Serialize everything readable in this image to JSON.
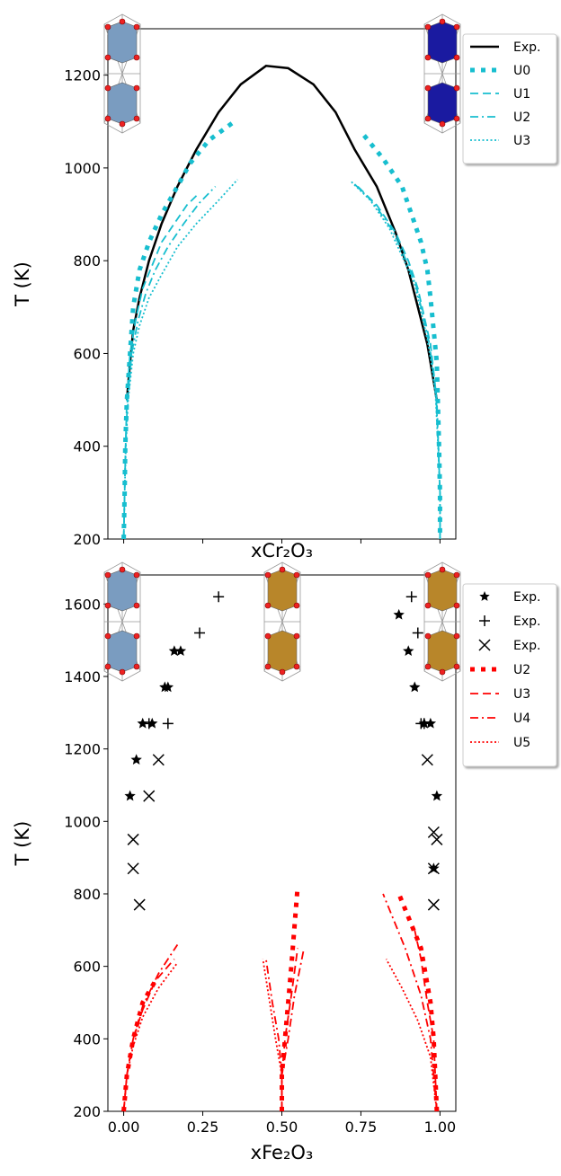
{
  "chart_data": [
    {
      "type": "line",
      "xlabel": "xCr₂O₃",
      "ylabel": "T (K)",
      "xlim": [
        -0.05,
        1.05
      ],
      "ylim": [
        200,
        1300
      ],
      "yticks": [
        200,
        400,
        600,
        800,
        1000,
        1200
      ],
      "series": [
        {
          "name": "Exp.",
          "type": "line",
          "style": "solid",
          "color": "#000000",
          "x": [
            0.01,
            0.02,
            0.03,
            0.05,
            0.08,
            0.12,
            0.17,
            0.23,
            0.3,
            0.37,
            0.45,
            0.52,
            0.6,
            0.67,
            0.73,
            0.8,
            0.86,
            0.9,
            0.93,
            0.96,
            0.98,
            0.99
          ],
          "values": [
            500,
            580,
            650,
            720,
            800,
            880,
            960,
            1040,
            1120,
            1180,
            1220,
            1215,
            1180,
            1120,
            1040,
            960,
            860,
            780,
            700,
            620,
            540,
            500
          ]
        },
        {
          "name": "U0",
          "type": "line",
          "style": "squares",
          "color": "#17becf",
          "x": [
            0,
            0.003,
            0.005,
            0.01,
            0.02,
            0.03,
            0.05,
            0.08,
            0.12,
            0.17,
            0.21,
            0.27,
            0.35,
            null,
            0.76,
            0.82,
            0.88,
            0.91,
            0.94,
            0.96,
            0.97,
            0.98,
            0.99,
            0.993,
            0.997,
            1,
            1
          ],
          "values": [
            200,
            300,
            400,
            500,
            600,
            700,
            780,
            840,
            900,
            960,
            1010,
            1060,
            1100,
            null,
            1070,
            1020,
            960,
            900,
            840,
            780,
            720,
            650,
            580,
            500,
            400,
            300,
            200
          ]
        },
        {
          "name": "U1",
          "type": "line",
          "style": "dashed",
          "color": "#17becf",
          "x": [
            0,
            0.003,
            0.006,
            0.01,
            0.02,
            0.04,
            0.06,
            0.09,
            0.12,
            0.16,
            0.2,
            0.23,
            null,
            0.74,
            0.8,
            0.86,
            0.9,
            0.93,
            0.95,
            0.97,
            0.98,
            0.99,
            0.995,
            1,
            1
          ],
          "values": [
            200,
            300,
            400,
            500,
            600,
            680,
            740,
            790,
            840,
            880,
            920,
            940,
            null,
            960,
            920,
            860,
            800,
            740,
            680,
            620,
            560,
            500,
            400,
            300,
            200
          ]
        },
        {
          "name": "U2",
          "type": "line",
          "style": "dashdot",
          "color": "#17becf",
          "x": [
            0,
            0.003,
            0.006,
            0.012,
            0.025,
            0.045,
            0.07,
            0.1,
            0.14,
            0.19,
            0.24,
            0.29,
            null,
            0.73,
            0.79,
            0.85,
            0.89,
            0.925,
            0.945,
            0.965,
            0.978,
            0.988,
            0.995,
            1,
            1
          ],
          "values": [
            200,
            300,
            400,
            500,
            600,
            670,
            730,
            780,
            830,
            880,
            925,
            960,
            null,
            965,
            925,
            865,
            805,
            745,
            685,
            625,
            565,
            505,
            400,
            300,
            200
          ]
        },
        {
          "name": "U3",
          "type": "line",
          "style": "dotted",
          "color": "#17becf",
          "x": [
            0,
            0.003,
            0.007,
            0.014,
            0.03,
            0.05,
            0.08,
            0.12,
            0.17,
            0.23,
            0.3,
            0.36,
            null,
            0.72,
            0.78,
            0.84,
            0.88,
            0.92,
            0.94,
            0.96,
            0.975,
            0.986,
            0.994,
            1,
            1
          ],
          "values": [
            200,
            300,
            400,
            500,
            600,
            660,
            720,
            770,
            830,
            880,
            930,
            975,
            null,
            970,
            930,
            870,
            810,
            750,
            690,
            630,
            570,
            510,
            400,
            300,
            200
          ]
        }
      ]
    },
    {
      "type": "line",
      "xlabel": "xFe₂O₃",
      "ylabel": "T (K)",
      "xlim": [
        -0.05,
        1.05
      ],
      "ylim": [
        200,
        1680
      ],
      "yticks": [
        200,
        400,
        600,
        800,
        1000,
        1200,
        1400,
        1600
      ],
      "xticks": [
        {
          "value": 0,
          "label": "0.00"
        },
        {
          "value": 0.25,
          "label": "0.25"
        },
        {
          "value": 0.5,
          "label": "0.50"
        },
        {
          "value": 0.75,
          "label": "0.75"
        },
        {
          "value": 1,
          "label": "1.00"
        }
      ],
      "series": [
        {
          "name": "Exp.",
          "type": "scatter",
          "marker": "star",
          "color": "#000000",
          "x": [
            0.02,
            0.04,
            0.06,
            0.09,
            0.13,
            0.14,
            0.16,
            0.18,
            0.87,
            0.9,
            0.92,
            0.95,
            0.97,
            0.99,
            0.98
          ],
          "values": [
            1070,
            1170,
            1270,
            1270,
            1370,
            1370,
            1470,
            1470,
            1570,
            1470,
            1370,
            1270,
            1270,
            1070,
            870
          ]
        },
        {
          "name": "Exp.",
          "type": "scatter",
          "marker": "plus",
          "color": "#000000",
          "x": [
            0.3,
            0.24,
            0.14,
            0.08,
            0.91,
            0.93,
            0.94,
            0.95
          ],
          "values": [
            1620,
            1520,
            1270,
            1270,
            1620,
            1520,
            1270,
            1270
          ]
        },
        {
          "name": "Exp.",
          "type": "scatter",
          "marker": "x",
          "color": "#000000",
          "x": [
            0.05,
            0.03,
            0.03,
            0.08,
            0.11,
            0.98,
            0.98,
            0.98,
            0.99,
            0.96
          ],
          "values": [
            770,
            870,
            950,
            1070,
            1170,
            770,
            870,
            970,
            950,
            1170
          ]
        },
        {
          "name": "U2",
          "type": "line",
          "style": "squares",
          "color": "#ff0000",
          "x": [
            0,
            0.01,
            0.03,
            0.06,
            0.1,
            null,
            0.5,
            0.5,
            0.51,
            0.52,
            0.53,
            0.55,
            null,
            0.99,
            0.98,
            0.97,
            0.94,
            0.87
          ],
          "values": [
            200,
            300,
            400,
            500,
            560,
            null,
            200,
            300,
            400,
            500,
            600,
            820,
            null,
            200,
            400,
            500,
            650,
            800
          ]
        },
        {
          "name": "U3",
          "type": "line",
          "style": "dashed",
          "color": "#ff0000",
          "x": [
            0,
            0.01,
            0.03,
            0.06,
            0.1,
            0.16,
            null,
            0.5,
            0.5,
            0.51,
            0.53,
            0.55,
            null,
            0.99,
            0.98,
            0.96,
            0.94,
            0.92
          ],
          "values": [
            200,
            300,
            400,
            480,
            560,
            620,
            null,
            200,
            300,
            400,
            520,
            650,
            null,
            200,
            400,
            500,
            620,
            700
          ]
        },
        {
          "name": "U4",
          "type": "line",
          "style": "dashdot",
          "color": "#ff0000",
          "x": [
            0,
            0.01,
            0.03,
            0.06,
            0.11,
            0.17,
            null,
            0.5,
            0.5,
            0.52,
            0.54,
            0.57,
            null,
            0.5,
            0.49,
            0.47,
            0.45,
            null,
            0.99,
            0.97,
            0.94,
            0.89,
            0.82
          ],
          "values": [
            200,
            300,
            400,
            490,
            580,
            660,
            null,
            200,
            300,
            400,
            520,
            650,
            null,
            300,
            400,
            500,
            620,
            null,
            200,
            400,
            520,
            650,
            800
          ]
        },
        {
          "name": "U5",
          "type": "line",
          "style": "dotted",
          "color": "#ff0000",
          "x": [
            0,
            0.01,
            0.03,
            0.06,
            0.11,
            0.17,
            null,
            0.5,
            0.5,
            0.48,
            0.46,
            0.44,
            null,
            0.99,
            0.97,
            0.93,
            0.88,
            0.83
          ],
          "values": [
            200,
            300,
            380,
            460,
            540,
            610,
            null,
            200,
            300,
            400,
            510,
            620,
            null,
            200,
            350,
            450,
            540,
            620
          ]
        }
      ]
    }
  ]
}
